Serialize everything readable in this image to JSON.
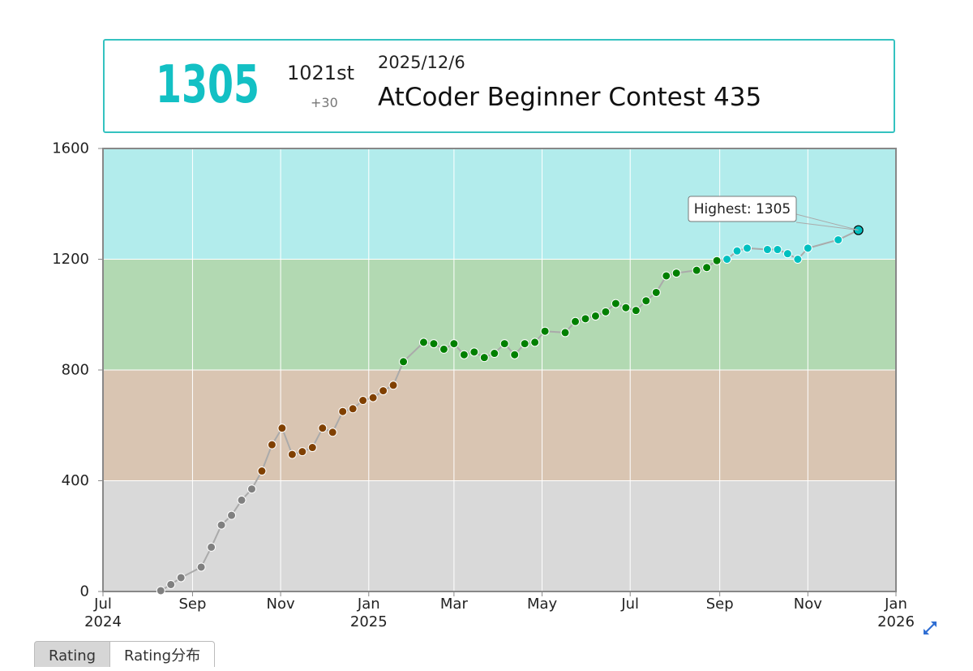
{
  "info": {
    "rating": "1305",
    "rank": "1021st",
    "delta": "+30",
    "date": "2025/12/6",
    "contest": "AtCoder Beginner Contest 435",
    "rating_color": "#13c0c4"
  },
  "tabs": [
    "Rating",
    "Rating分布"
  ],
  "icons": {
    "expand": "expand-arrows-icon"
  },
  "chart_data": {
    "type": "line",
    "ylim": [
      0,
      1600
    ],
    "yticks": [
      0,
      400,
      800,
      1200,
      1600
    ],
    "xlim": [
      "2024-07-01",
      "2026-01-01"
    ],
    "xticks": [
      {
        "date": "2024-07-01",
        "label": "Jul",
        "year": "2024"
      },
      {
        "date": "2024-09-01",
        "label": "Sep",
        "year": ""
      },
      {
        "date": "2024-11-01",
        "label": "Nov",
        "year": ""
      },
      {
        "date": "2025-01-01",
        "label": "Jan",
        "year": "2025"
      },
      {
        "date": "2025-03-01",
        "label": "Mar",
        "year": ""
      },
      {
        "date": "2025-05-01",
        "label": "May",
        "year": ""
      },
      {
        "date": "2025-07-01",
        "label": "Jul",
        "year": ""
      },
      {
        "date": "2025-09-01",
        "label": "Sep",
        "year": ""
      },
      {
        "date": "2025-11-01",
        "label": "Nov",
        "year": ""
      },
      {
        "date": "2026-01-01",
        "label": "Jan",
        "year": "2026"
      }
    ],
    "grid": true,
    "bands": [
      {
        "from": 0,
        "to": 400,
        "color": "#d9d9d9"
      },
      {
        "from": 400,
        "to": 800,
        "color": "#d9c5b2"
      },
      {
        "from": 800,
        "to": 1200,
        "color": "#b2d9b2"
      },
      {
        "from": 1200,
        "to": 1600,
        "color": "#b2ecec"
      }
    ],
    "point_colors": [
      {
        "max": 400,
        "color": "#808080"
      },
      {
        "max": 800,
        "color": "#804000"
      },
      {
        "max": 1200,
        "color": "#008000"
      },
      {
        "max": 1600,
        "color": "#00c0c0"
      }
    ],
    "annotation": "Highest: 1305",
    "x": [
      "2024-08-10",
      "2024-08-17",
      "2024-08-24",
      "2024-09-07",
      "2024-09-14",
      "2024-09-21",
      "2024-09-28",
      "2024-10-05",
      "2024-10-12",
      "2024-10-19",
      "2024-10-26",
      "2024-11-02",
      "2024-11-09",
      "2024-11-16",
      "2024-11-23",
      "2024-11-30",
      "2024-12-07",
      "2024-12-14",
      "2024-12-21",
      "2024-12-28",
      "2025-01-04",
      "2025-01-11",
      "2025-01-18",
      "2025-01-25",
      "2025-02-08",
      "2025-02-15",
      "2025-02-22",
      "2025-03-01",
      "2025-03-08",
      "2025-03-15",
      "2025-03-22",
      "2025-03-29",
      "2025-04-05",
      "2025-04-12",
      "2025-04-19",
      "2025-04-26",
      "2025-05-03",
      "2025-05-17",
      "2025-05-24",
      "2025-05-31",
      "2025-06-07",
      "2025-06-14",
      "2025-06-21",
      "2025-06-28",
      "2025-07-05",
      "2025-07-12",
      "2025-07-19",
      "2025-07-26",
      "2025-08-02",
      "2025-08-16",
      "2025-08-23",
      "2025-08-30",
      "2025-09-06",
      "2025-09-13",
      "2025-09-20",
      "2025-10-04",
      "2025-10-11",
      "2025-10-18",
      "2025-10-25",
      "2025-11-01",
      "2025-11-22",
      "2025-12-06"
    ],
    "values": [
      3,
      25,
      50,
      88,
      160,
      240,
      275,
      330,
      370,
      435,
      530,
      590,
      495,
      505,
      520,
      590,
      575,
      650,
      660,
      690,
      700,
      725,
      745,
      830,
      900,
      895,
      875,
      895,
      855,
      865,
      845,
      860,
      895,
      855,
      895,
      900,
      940,
      935,
      975,
      985,
      995,
      1010,
      1040,
      1025,
      1015,
      1050,
      1080,
      1140,
      1150,
      1160,
      1170,
      1195,
      1200,
      1230,
      1240,
      1235,
      1235,
      1220,
      1200,
      1240,
      1270,
      1305
    ]
  }
}
